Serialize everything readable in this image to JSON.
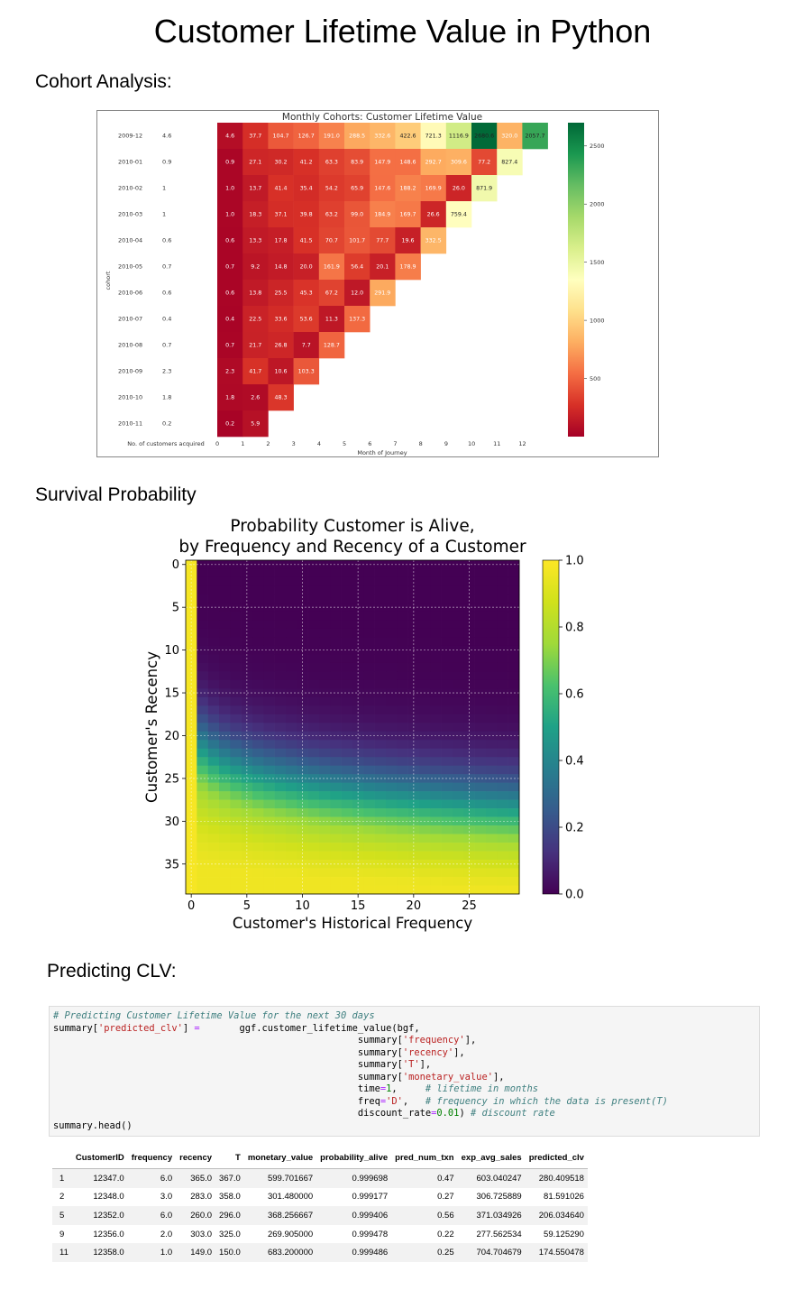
{
  "page": {
    "title": "Customer Lifetime Value in Python",
    "sections": {
      "cohort": "Cohort Analysis:",
      "survival": "Survival Probability",
      "predicting": "Predicting CLV:"
    }
  },
  "chart_data": [
    {
      "type": "heatmap",
      "title": "Monthly Cohorts: Customer Lifetime Value",
      "xlabel": "Month of Journey",
      "ylabel": "cohort",
      "acquired_label": "No. of customers acquired",
      "months": [
        "0",
        "1",
        "2",
        "3",
        "4",
        "5",
        "6",
        "7",
        "8",
        "9",
        "10",
        "11",
        "12"
      ],
      "cohorts": [
        "2009-12",
        "2010-01",
        "2010-02",
        "2010-03",
        "2010-04",
        "2010-05",
        "2010-06",
        "2010-07",
        "2010-08",
        "2010-09",
        "2010-10",
        "2010-11"
      ],
      "customers_acquired": [
        "4.6",
        "0.9",
        "1",
        "1",
        "0.6",
        "0.7",
        "0.6",
        "0.4",
        "0.7",
        "2.3",
        "1.8",
        "0.2"
      ],
      "values": [
        [
          4.6,
          37.7,
          104.7,
          126.7,
          191.0,
          288.5,
          332.6,
          422.6,
          721.3,
          1116.9,
          2680.6,
          320.0,
          2057.7
        ],
        [
          0.9,
          27.1,
          30.2,
          41.2,
          63.3,
          83.9,
          147.9,
          148.6,
          292.7,
          309.6,
          77.2,
          827.4
        ],
        [
          1.0,
          13.7,
          41.4,
          35.4,
          54.2,
          65.9,
          147.6,
          188.2,
          169.9,
          26.0,
          871.9
        ],
        [
          1.0,
          18.3,
          37.1,
          39.8,
          63.2,
          99.0,
          184.9,
          169.7,
          26.6,
          759.4
        ],
        [
          0.6,
          13.3,
          17.8,
          41.5,
          70.7,
          101.7,
          77.7,
          19.6,
          332.5
        ],
        [
          0.7,
          9.2,
          14.8,
          20.0,
          161.9,
          56.4,
          20.1,
          178.9
        ],
        [
          0.6,
          13.8,
          25.5,
          45.3,
          67.2,
          12.0,
          291.9
        ],
        [
          0.4,
          22.5,
          33.6,
          53.6,
          11.3,
          137.3
        ],
        [
          0.7,
          21.7,
          26.8,
          7.7,
          128.7
        ],
        [
          2.3,
          41.7,
          10.6,
          103.3
        ],
        [
          1.8,
          2.6,
          48.3
        ],
        [
          0.2,
          5.9
        ]
      ],
      "colorbar": {
        "min": 0,
        "max": 2700,
        "ticks": [
          500,
          1000,
          1500,
          2000,
          2500
        ],
        "colormap": "RdYlGn"
      }
    },
    {
      "type": "heatmap",
      "title": "Probability Customer is Alive,\nby Frequency and Recency of a Customer",
      "xlabel": "Customer's Historical Frequency",
      "ylabel": "Customer's Recency",
      "x_ticks": [
        0,
        5,
        10,
        15,
        20,
        25
      ],
      "y_ticks": [
        0,
        5,
        10,
        15,
        20,
        25,
        30,
        35
      ],
      "xlim": [
        -0.5,
        29.5
      ],
      "ylim": [
        38.5,
        -0.5
      ],
      "grid": true,
      "colormap": "viridis",
      "colorbar": {
        "min": 0.0,
        "max": 1.0,
        "ticks": [
          "0.0",
          "0.2",
          "0.4",
          "0.6",
          "0.8",
          "1.0"
        ]
      }
    }
  ],
  "code": {
    "comment": "# Predicting Customer Lifetime Value for the next 30 days",
    "line1_pre": "summary[",
    "line1_key": "'predicted_clv'",
    "line1_mid": "] ",
    "line1_op": "=",
    "line1_post": "       ggf.customer_lifetime_value(bgf,",
    "arg1_pre": "summary[",
    "arg1_key": "'frequency'",
    "arg1_post": "],",
    "arg2_pre": "summary[",
    "arg2_key": "'recency'",
    "arg2_post": "],",
    "arg3_pre": "summary[",
    "arg3_key": "'T'",
    "arg3_post": "],",
    "arg4_pre": "summary[",
    "arg4_key": "'monetary_value'",
    "arg4_post": "],",
    "time_pre": "time",
    "time_op": "=",
    "time_val": "1",
    "time_sep": ",     ",
    "time_comment": "# lifetime in months",
    "freq_pre": "freq",
    "freq_op": "=",
    "freq_val": "'D'",
    "freq_sep": ",   ",
    "freq_comment": "# frequency in which the data is present(T)",
    "disc_pre": "discount_rate",
    "disc_op": "=",
    "disc_val": "0.01",
    "disc_sep": ") ",
    "disc_comment": "# discount rate",
    "last": "summary.head()"
  },
  "table": {
    "columns": [
      "",
      "CustomerID",
      "frequency",
      "recency",
      "T",
      "monetary_value",
      "probability_alive",
      "pred_num_txn",
      "exp_avg_sales",
      "predicted_clv"
    ],
    "rows": [
      [
        "1",
        "12347.0",
        "6.0",
        "365.0",
        "367.0",
        "599.701667",
        "0.999698",
        "0.47",
        "603.040247",
        "280.409518"
      ],
      [
        "2",
        "12348.0",
        "3.0",
        "283.0",
        "358.0",
        "301.480000",
        "0.999177",
        "0.27",
        "306.725889",
        "81.591026"
      ],
      [
        "5",
        "12352.0",
        "6.0",
        "260.0",
        "296.0",
        "368.256667",
        "0.999406",
        "0.56",
        "371.034926",
        "206.034640"
      ],
      [
        "9",
        "12356.0",
        "2.0",
        "303.0",
        "325.0",
        "269.905000",
        "0.999478",
        "0.22",
        "277.562534",
        "59.125290"
      ],
      [
        "11",
        "12358.0",
        "1.0",
        "149.0",
        "150.0",
        "683.200000",
        "0.999486",
        "0.25",
        "704.704679",
        "174.550478"
      ]
    ]
  }
}
